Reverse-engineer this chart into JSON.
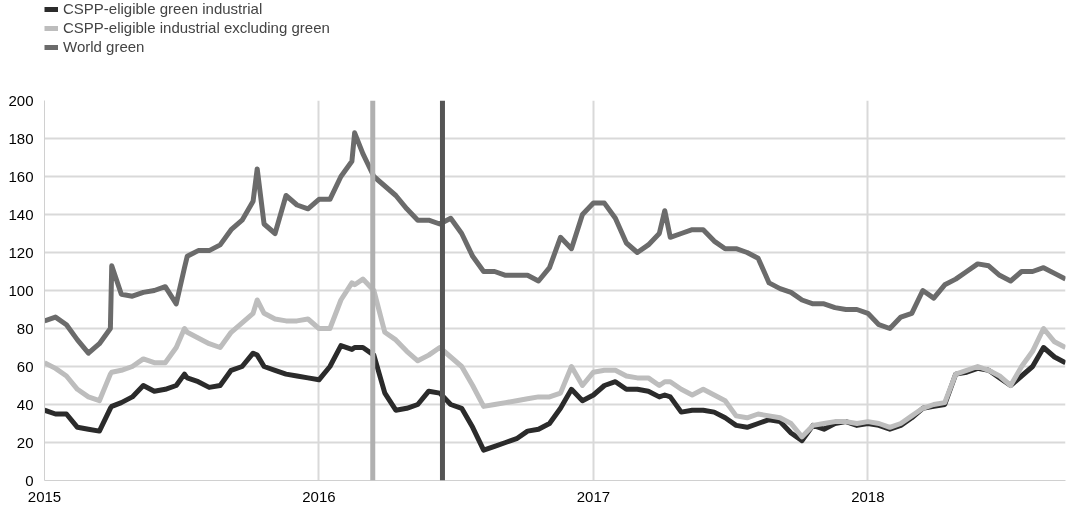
{
  "chart_data": {
    "type": "line",
    "x": [
      2015.0,
      2015.04,
      2015.08,
      2015.12,
      2015.16,
      2015.2,
      2015.24,
      2015.245,
      2015.28,
      2015.32,
      2015.36,
      2015.4,
      2015.44,
      2015.48,
      2015.51,
      2015.52,
      2015.56,
      2015.6,
      2015.64,
      2015.68,
      2015.72,
      2015.76,
      2015.775,
      2015.8,
      2015.84,
      2015.88,
      2015.92,
      2015.96,
      2016.0,
      2016.04,
      2016.08,
      2016.12,
      2016.13,
      2016.16,
      2016.2,
      2016.24,
      2016.28,
      2016.32,
      2016.36,
      2016.4,
      2016.44,
      2016.48,
      2016.52,
      2016.56,
      2016.6,
      2016.64,
      2016.68,
      2016.72,
      2016.76,
      2016.8,
      2016.84,
      2016.88,
      2016.92,
      2016.96,
      2017.0,
      2017.04,
      2017.08,
      2017.12,
      2017.16,
      2017.2,
      2017.24,
      2017.26,
      2017.28,
      2017.32,
      2017.36,
      2017.4,
      2017.44,
      2017.48,
      2017.52,
      2017.56,
      2017.6,
      2017.64,
      2017.68,
      2017.72,
      2017.76,
      2017.8,
      2017.84,
      2017.88,
      2017.92,
      2017.96,
      2018.0,
      2018.04,
      2018.08,
      2018.12,
      2018.16,
      2018.2,
      2018.24,
      2018.28,
      2018.32,
      2018.36,
      2018.4,
      2018.44,
      2018.48,
      2018.52,
      2018.56,
      2018.6,
      2018.64,
      2018.68,
      2018.72
    ],
    "series": [
      {
        "name": "CSPP-eligible green industrial",
        "color": "#2b2b2b",
        "values": [
          37,
          35,
          35,
          28,
          27,
          26,
          38,
          39,
          41,
          44,
          50,
          47,
          48,
          50,
          56,
          54,
          52,
          49,
          50,
          58,
          60,
          67,
          66,
          60,
          58,
          56,
          55,
          54,
          53,
          60,
          71,
          69,
          70,
          70,
          66,
          46,
          37,
          38,
          40,
          47,
          46,
          40,
          38,
          28,
          16,
          18,
          20,
          22,
          26,
          27,
          30,
          38,
          48,
          42,
          45,
          50,
          52,
          48,
          48,
          47,
          44,
          45,
          44,
          36,
          37,
          37,
          36,
          33,
          29,
          28,
          30,
          32,
          31,
          25,
          21,
          29,
          27,
          30,
          31,
          29,
          30,
          29,
          27,
          29,
          33,
          38,
          39,
          40,
          56,
          57,
          59,
          58,
          54,
          50,
          55,
          60,
          70,
          65,
          62
        ]
      },
      {
        "name": "CSPP-eligible industrial excluding green",
        "color": "#bdbdbd",
        "values": [
          62,
          59,
          55,
          48,
          44,
          42,
          56,
          57,
          58,
          60,
          64,
          62,
          62,
          70,
          80,
          78,
          75,
          72,
          70,
          78,
          83,
          88,
          95,
          88,
          85,
          84,
          84,
          85,
          80,
          80,
          95,
          104,
          103,
          106,
          100,
          78,
          74,
          68,
          63,
          66,
          70,
          65,
          60,
          50,
          39,
          40,
          41,
          42,
          43,
          44,
          44,
          46,
          60,
          50,
          57,
          58,
          58,
          55,
          54,
          54,
          50,
          52,
          52,
          48,
          45,
          48,
          45,
          42,
          34,
          33,
          35,
          34,
          33,
          30,
          23,
          29,
          30,
          31,
          31,
          30,
          31,
          30,
          28,
          30,
          34,
          38,
          40,
          41,
          56,
          58,
          60,
          58,
          55,
          50,
          60,
          68,
          80,
          73,
          70
        ]
      },
      {
        "name": "World green",
        "color": "#6b6b6b",
        "values": [
          84,
          86,
          82,
          74,
          67,
          72,
          80,
          113,
          98,
          97,
          99,
          100,
          102,
          93,
          112,
          118,
          121,
          121,
          124,
          132,
          137,
          147,
          164,
          135,
          130,
          150,
          145,
          143,
          148,
          148,
          160,
          168,
          183,
          172,
          160,
          155,
          150,
          143,
          137,
          137,
          135,
          138,
          130,
          118,
          110,
          110,
          108,
          108,
          108,
          105,
          112,
          128,
          122,
          140,
          146,
          146,
          138,
          125,
          120,
          124,
          130,
          142,
          128,
          130,
          132,
          132,
          126,
          122,
          122,
          120,
          117,
          104,
          101,
          99,
          95,
          93,
          93,
          91,
          90,
          90,
          88,
          82,
          80,
          86,
          88,
          100,
          96,
          103,
          106,
          110,
          114,
          113,
          108,
          105,
          110,
          110,
          112,
          109,
          106
        ]
      }
    ],
    "ref_lines": [
      {
        "axis": "x",
        "value": 2016.196,
        "color": "#b0b0b0"
      },
      {
        "axis": "x",
        "value": 2016.45,
        "color": "#555555"
      }
    ],
    "xlim": [
      2015,
      2018.72
    ],
    "xticks": [
      2015,
      2016,
      2017,
      2018
    ],
    "ylim": [
      0,
      200
    ],
    "yticks": [
      0,
      20,
      40,
      60,
      80,
      100,
      120,
      140,
      160,
      180,
      200
    ],
    "grid": true,
    "legend": "top left",
    "line_style": "solid"
  }
}
